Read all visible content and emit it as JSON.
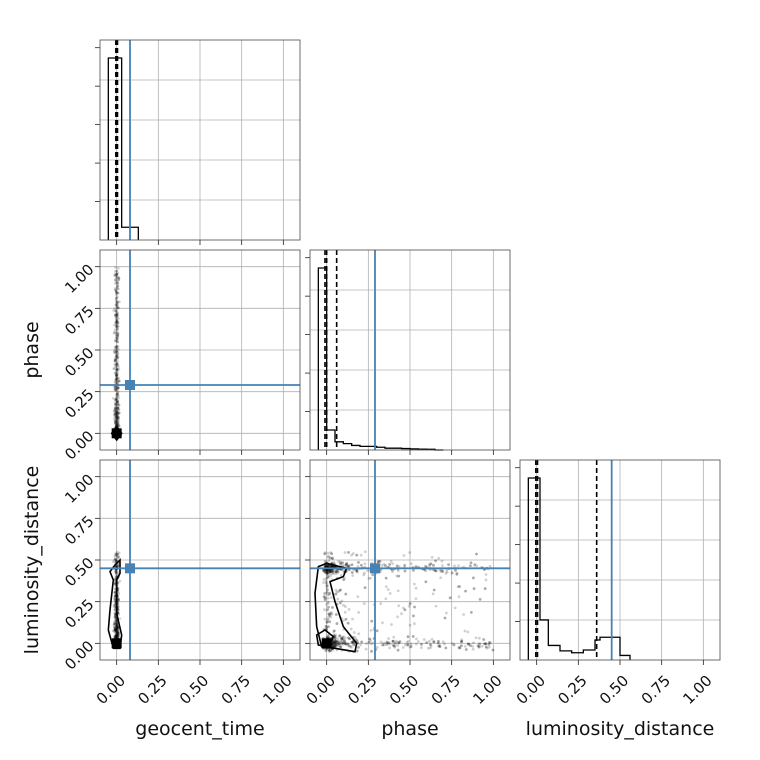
{
  "chart_data": {
    "type": "corner",
    "parameters": [
      "geocent_time",
      "phase",
      "luminosity_distance"
    ],
    "axis_range": [
      -0.1,
      1.1
    ],
    "tick_labels": [
      "0.00",
      "0.25",
      "0.50",
      "0.75",
      "1.00"
    ],
    "grid": true,
    "colors": {
      "truth": "#4682b4",
      "samples": "#000000",
      "grid": "#b0b0b0"
    },
    "truths": {
      "geocent_time": 0.08,
      "phase": 0.29,
      "luminosity_distance": 0.45
    },
    "histograms": {
      "geocent_time": {
        "bin_edges": [
          -0.05,
          0.03,
          0.13
        ],
        "density": [
          1.0,
          0.07
        ],
        "quantiles": [
          -0.005,
          0.0,
          0.005
        ]
      },
      "phase": {
        "bin_edges": [
          -0.05,
          0.0,
          0.05,
          0.1,
          0.15,
          0.2,
          0.25,
          0.3,
          0.35,
          0.4,
          0.45,
          0.5,
          0.55,
          0.6,
          0.65,
          0.7
        ],
        "density": [
          1.0,
          0.11,
          0.045,
          0.035,
          0.025,
          0.02,
          0.02,
          0.015,
          0.01,
          0.01,
          0.008,
          0.006,
          0.005,
          0.004,
          0.0
        ],
        "quantiles": [
          -0.01,
          0.0,
          0.06
        ]
      },
      "luminosity_distance": {
        "bin_edges": [
          -0.05,
          0.02,
          0.07,
          0.14,
          0.21,
          0.28,
          0.35,
          0.38,
          0.5,
          0.56
        ],
        "density": [
          1.0,
          0.22,
          0.08,
          0.05,
          0.04,
          0.055,
          0.11,
          0.125,
          0.025
        ],
        "quantiles": [
          -0.005,
          0.005,
          0.36
        ]
      }
    },
    "contours_2d": {
      "phase_vs_geocent_time": [
        [
          [
            -0.03,
            0.0
          ],
          [
            0.0,
            0.04
          ],
          [
            0.03,
            0.0
          ],
          [
            0.0,
            -0.04
          ]
        ],
        [
          [
            -0.01,
            0.0
          ],
          [
            0.0,
            0.015
          ],
          [
            0.01,
            0.0
          ],
          [
            0.0,
            -0.015
          ]
        ]
      ],
      "luminosity_distance_vs_geocent_time": [
        [
          [
            -0.01,
            0.47
          ],
          [
            0.02,
            0.5
          ],
          [
            0.02,
            0.42
          ],
          [
            0.0,
            0.38
          ],
          [
            0.0,
            0.18
          ],
          [
            0.03,
            0.05
          ],
          [
            0.02,
            -0.03
          ],
          [
            -0.02,
            -0.03
          ],
          [
            -0.05,
            0.08
          ],
          [
            -0.04,
            0.2
          ],
          [
            -0.02,
            0.38
          ],
          [
            -0.04,
            0.43
          ]
        ],
        [
          [
            -0.005,
            0.0
          ],
          [
            0.0,
            0.02
          ],
          [
            0.005,
            0.0
          ],
          [
            0.0,
            -0.01
          ]
        ]
      ],
      "luminosity_distance_vs_phase": [
        [
          [
            -0.05,
            0.46
          ],
          [
            0.0,
            0.48
          ],
          [
            0.04,
            0.47
          ],
          [
            0.12,
            0.45
          ],
          [
            0.1,
            0.4
          ],
          [
            0.02,
            0.37
          ],
          [
            0.05,
            0.25
          ],
          [
            0.1,
            0.1
          ],
          [
            0.18,
            0.0
          ],
          [
            0.17,
            -0.05
          ],
          [
            0.05,
            -0.03
          ],
          [
            -0.03,
            -0.02
          ],
          [
            -0.06,
            0.1
          ],
          [
            -0.07,
            0.3
          ]
        ],
        [
          [
            -0.06,
            0.05
          ],
          [
            -0.01,
            0.08
          ],
          [
            0.04,
            0.04
          ],
          [
            0.01,
            -0.02
          ],
          [
            -0.05,
            -0.01
          ]
        ]
      ]
    },
    "scatter_2d": {
      "phase_vs_geocent_time": {
        "x_center": 0.0,
        "x_spread": 0.02,
        "y_max": 1.0,
        "n": 500
      },
      "luminosity_distance_vs_geocent_time": {
        "x_center": 0.0,
        "x_spread": 0.02,
        "y_max": 0.55,
        "n": 500
      },
      "luminosity_distance_vs_phase": {
        "x_max": 1.0,
        "y_bands": [
          0.0,
          0.45
        ],
        "n": 1200
      }
    }
  }
}
